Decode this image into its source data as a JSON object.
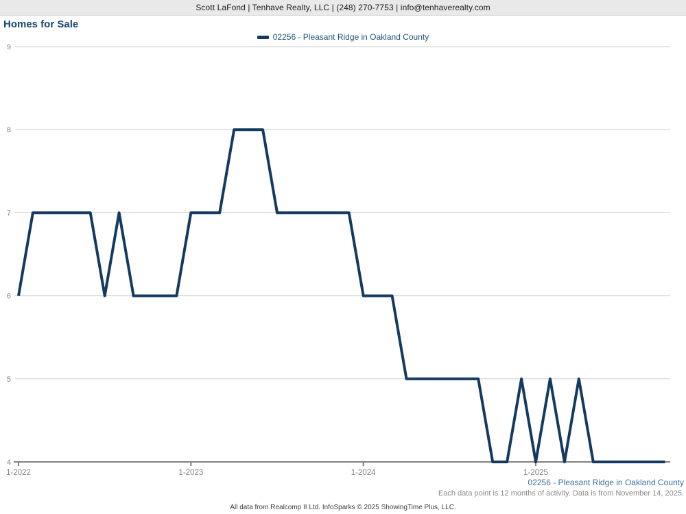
{
  "header": {
    "contact_line": "Scott LaFond | Tenhave Realty, LLC | (248) 270-7753 | info@tenhaverealty.com"
  },
  "title": "Homes for Sale",
  "legend": {
    "label": "02256 - Pleasant Ridge in Oakland County"
  },
  "footnotes": {
    "series_label": "02256 - Pleasant Ridge in Oakland County",
    "note": "Each data point is 12 months of activity. Data is from November 14, 2025.",
    "credit": "All data from Realcomp II Ltd. InfoSparks © 2025 ShowingTime Plus, LLC."
  },
  "chart_data": {
    "type": "line",
    "title": "Homes for Sale",
    "series_name": "02256 - Pleasant Ridge in Oakland County",
    "x": [
      "1-2022",
      "2-2022",
      "3-2022",
      "4-2022",
      "5-2022",
      "6-2022",
      "7-2022",
      "8-2022",
      "9-2022",
      "10-2022",
      "11-2022",
      "12-2022",
      "1-2023",
      "2-2023",
      "3-2023",
      "4-2023",
      "5-2023",
      "6-2023",
      "7-2023",
      "8-2023",
      "9-2023",
      "10-2023",
      "11-2023",
      "12-2023",
      "1-2024",
      "2-2024",
      "3-2024",
      "4-2024",
      "5-2024",
      "6-2024",
      "7-2024",
      "8-2024",
      "9-2024",
      "10-2024",
      "11-2024",
      "12-2024",
      "1-2025",
      "2-2025",
      "3-2025",
      "4-2025",
      "5-2025",
      "6-2025",
      "7-2025",
      "8-2025",
      "9-2025",
      "10-2025"
    ],
    "values": [
      6,
      7,
      7,
      7,
      7,
      7,
      6,
      7,
      6,
      6,
      6,
      6,
      7,
      7,
      7,
      8,
      8,
      8,
      7,
      7,
      7,
      7,
      7,
      7,
      6,
      6,
      6,
      5,
      5,
      5,
      5,
      5,
      5,
      4,
      4,
      5,
      4,
      5,
      4,
      5,
      4,
      4,
      4,
      4,
      4,
      4
    ],
    "ylim": [
      4,
      9
    ],
    "yticks": [
      4,
      5,
      6,
      7,
      8,
      9
    ],
    "xticks": [
      "1-2022",
      "1-2023",
      "1-2024",
      "1-2025"
    ],
    "grid": "horizontal only",
    "legend_position": "top center",
    "colors": {
      "line": "#143a61",
      "grid": "#cccccc",
      "axis": "#808080",
      "tick_text": "#808080"
    }
  }
}
